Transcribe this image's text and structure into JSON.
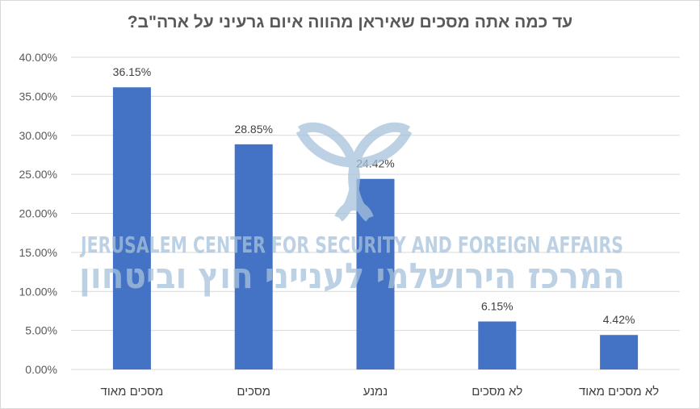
{
  "chart_data": {
    "type": "bar",
    "title": "עד כמה אתה מסכים שאיראן מהווה איום גרעיני על ארה\"ב?",
    "categories": [
      "מסכים מאוד",
      "מסכים",
      "נמנע",
      "לא מסכים",
      "לא מסכים מאוד"
    ],
    "values": [
      36.15,
      28.85,
      24.42,
      6.15,
      4.42
    ],
    "data_labels": [
      "36.15%",
      "28.85%",
      "24.42%",
      "6.15%",
      "4.42%"
    ],
    "ylim": [
      0,
      40
    ],
    "yticks": [
      0,
      5,
      10,
      15,
      20,
      25,
      30,
      35,
      40
    ],
    "ytick_labels": [
      "0.00%",
      "5.00%",
      "10.00%",
      "15.00%",
      "20.00%",
      "25.00%",
      "30.00%",
      "35.00%",
      "40.00%"
    ],
    "xlabel": "",
    "ylabel": "",
    "grid": true,
    "legend": "none",
    "colors": {
      "bar": "#4472c4",
      "grid": "#d9d9d9",
      "text": "#595959",
      "watermark": "#a7c2dc"
    }
  },
  "watermark": {
    "line1": "JERUSALEM CENTER FOR SECURITY AND FOREIGN AFFAIRS",
    "line2": "המרכז הירושלמי לענייני חוץ וביטחון",
    "icon": "trefoil-knot-logo"
  }
}
